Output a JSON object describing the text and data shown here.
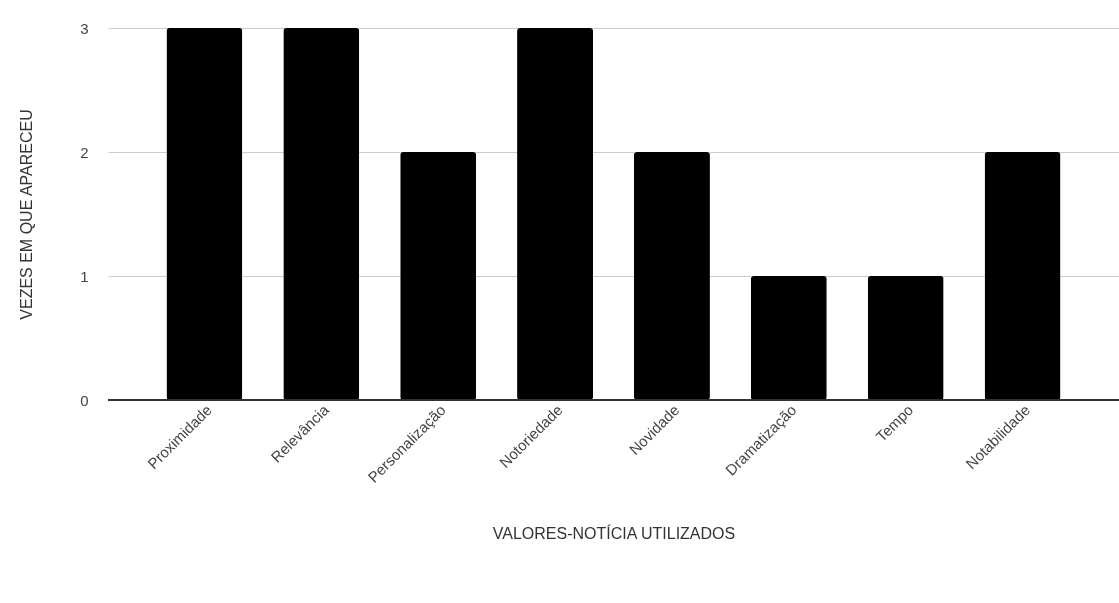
{
  "chart_data": {
    "type": "bar",
    "xlabel": "VALORES-NOTÍCIA UTILIZADOS",
    "ylabel": "VEZES EM QUE APARECEU",
    "categories": [
      "Proximidade",
      "Relevância",
      "Personalização",
      "Notoriedade",
      "Novidade",
      "Dramatização",
      "Tempo",
      "Notabilidade"
    ],
    "values": [
      3,
      3,
      2,
      3,
      2,
      1,
      1,
      2
    ],
    "color": "#000000",
    "ylim": [
      0,
      3
    ],
    "yticks": [
      0,
      1,
      2,
      3
    ],
    "grid": "y"
  }
}
